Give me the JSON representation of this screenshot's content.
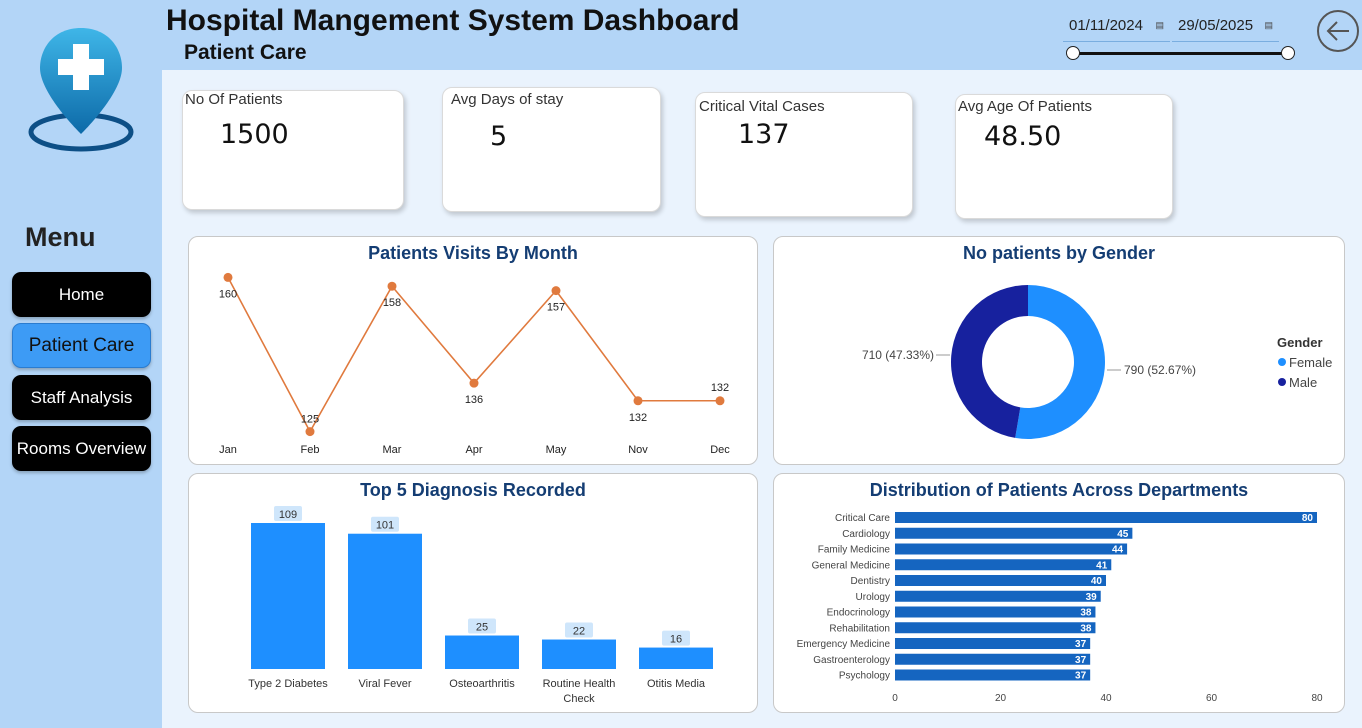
{
  "header": {
    "title": "Hospital Mangement System Dashboard",
    "subtitle": "Patient Care",
    "date_start": "01/11/2024",
    "date_end": "29/05/2025"
  },
  "sidebar": {
    "menu_title": "Menu",
    "items": [
      {
        "label": "Home"
      },
      {
        "label": "Patient Care"
      },
      {
        "label": "Staff Analysis"
      },
      {
        "label": "Rooms Overview"
      }
    ]
  },
  "kpis": [
    {
      "label": "No Of Patients",
      "value": "1500"
    },
    {
      "label": "Avg  Days of stay",
      "value": "5"
    },
    {
      "label": "Critical Vital Cases",
      "value": "137"
    },
    {
      "label": "Avg Age Of Patients",
      "value": "48.50"
    }
  ],
  "colors": {
    "accent": "#1e8fff",
    "line": "#e07a3e",
    "female": "#1e8fff",
    "male": "#17219e",
    "bar_dept": "#1565c0"
  },
  "chart_data": [
    {
      "type": "line",
      "title": "Patients Visits By Month",
      "categories": [
        "Jan",
        "Feb",
        "Mar",
        "Apr",
        "May",
        "Nov",
        "Dec"
      ],
      "values": [
        160,
        125,
        158,
        136,
        157,
        132,
        132
      ],
      "ylim": [
        124,
        161
      ]
    },
    {
      "type": "pie",
      "title": "No patients by Gender",
      "legend_title": "Gender",
      "legend_position": "right",
      "slices": [
        {
          "name": "Female",
          "value": 790,
          "label": "790 (52.67%)"
        },
        {
          "name": "Male",
          "value": 710,
          "label": "710 (47.33%)"
        }
      ]
    },
    {
      "type": "bar",
      "title": "Top 5 Diagnosis Recorded",
      "categories": [
        "Type 2 Diabetes",
        "Viral Fever",
        "Osteoarthritis",
        "Routine Health Check",
        "Otitis Media"
      ],
      "values": [
        109,
        101,
        25,
        22,
        16
      ],
      "ylim": [
        0,
        109
      ]
    },
    {
      "type": "bar",
      "orientation": "horizontal",
      "title": "Distribution of Patients Across Departments",
      "categories": [
        "Critical Care",
        "Cardiology",
        "Family Medicine",
        "General Medicine",
        "Dentistry",
        "Urology",
        "Endocrinology",
        "Rehabilitation",
        "Emergency Medicine",
        "Gastroenterology",
        "Psychology"
      ],
      "values": [
        80,
        45,
        44,
        41,
        40,
        39,
        38,
        38,
        37,
        37,
        37
      ],
      "xlim": [
        0,
        80
      ],
      "xticks": [
        0,
        20,
        40,
        60,
        80
      ]
    }
  ]
}
